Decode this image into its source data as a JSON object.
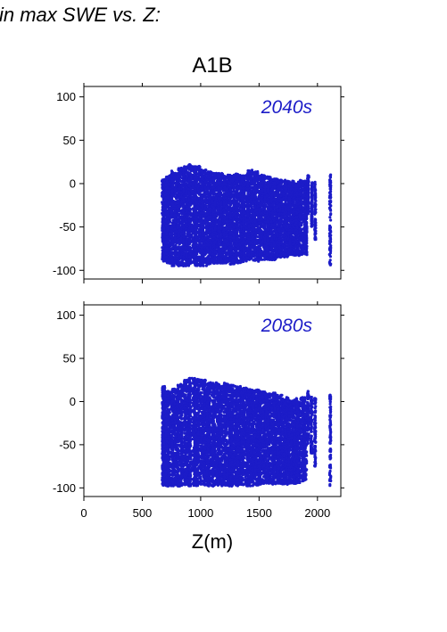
{
  "header": {
    "top_caption": "in max SWE vs. Z:",
    "scenario_title": "A1B",
    "x_axis_label": "Z(m)"
  },
  "colors": {
    "points": "#1c1cc8",
    "period_label": "#1c1cc8",
    "frame": "#000000"
  },
  "chart_data": [
    {
      "type": "scatter",
      "title": "A1B",
      "annotation": "2040s",
      "xlabel": "Z(m)",
      "ylabel": "",
      "xlim": [
        0,
        2200
      ],
      "ylim": [
        -110,
        112
      ],
      "x_ticks": [
        0,
        500,
        1000,
        1500,
        2000
      ],
      "y_ticks": [
        -100,
        -50,
        0,
        50,
        100
      ],
      "y_tick_labels": [
        "-100",
        "-50",
        "0",
        "50",
        "100"
      ],
      "grid": false,
      "point_summary": {
        "x_range": [
          670,
          2110
        ],
        "y_range_upper": [
          10,
          22
        ],
        "y_range_lower": [
          -97,
          -80
        ],
        "columns": [
          {
            "x": 670,
            "ymin": -90,
            "ymax": 5
          },
          {
            "x": 700,
            "ymin": -92,
            "ymax": 10
          },
          {
            "x": 750,
            "ymin": -95,
            "ymax": 15
          },
          {
            "x": 800,
            "ymin": -95,
            "ymax": 18
          },
          {
            "x": 850,
            "ymin": -95,
            "ymax": 20
          },
          {
            "x": 900,
            "ymin": -93,
            "ymax": 22
          },
          {
            "x": 950,
            "ymin": -95,
            "ymax": 20
          },
          {
            "x": 1000,
            "ymin": -95,
            "ymax": 16
          },
          {
            "x": 1050,
            "ymin": -93,
            "ymax": 14
          },
          {
            "x": 1100,
            "ymin": -92,
            "ymax": 12
          },
          {
            "x": 1150,
            "ymin": -92,
            "ymax": 12
          },
          {
            "x": 1200,
            "ymin": -92,
            "ymax": 10
          },
          {
            "x": 1250,
            "ymin": -93,
            "ymax": 10
          },
          {
            "x": 1300,
            "ymin": -92,
            "ymax": 12
          },
          {
            "x": 1350,
            "ymin": -90,
            "ymax": 10
          },
          {
            "x": 1400,
            "ymin": -88,
            "ymax": 16
          },
          {
            "x": 1450,
            "ymin": -90,
            "ymax": 14
          },
          {
            "x": 1500,
            "ymin": -88,
            "ymax": 10
          },
          {
            "x": 1550,
            "ymin": -88,
            "ymax": 8
          },
          {
            "x": 1600,
            "ymin": -88,
            "ymax": 6
          },
          {
            "x": 1650,
            "ymin": -85,
            "ymax": 5
          },
          {
            "x": 1700,
            "ymin": -85,
            "ymax": 4
          },
          {
            "x": 1750,
            "ymin": -82,
            "ymax": 3
          },
          {
            "x": 1800,
            "ymin": -83,
            "ymax": 2
          },
          {
            "x": 1850,
            "ymin": -82,
            "ymax": 5
          },
          {
            "x": 1920,
            "ymin": -35,
            "ymax": 10
          },
          {
            "x": 1950,
            "ymin": -50,
            "ymax": 4
          },
          {
            "x": 1980,
            "ymin": -65,
            "ymax": 2
          },
          {
            "x": 2110,
            "ymin": -95,
            "ymax": 15
          }
        ]
      }
    },
    {
      "type": "scatter",
      "title": "",
      "annotation": "2080s",
      "xlabel": "Z(m)",
      "ylabel": "",
      "xlim": [
        0,
        2200
      ],
      "ylim": [
        -110,
        112
      ],
      "x_ticks": [
        0,
        500,
        1000,
        1500,
        2000
      ],
      "x_tick_labels": [
        "0",
        "500",
        "1000",
        "1500",
        "2000"
      ],
      "y_ticks": [
        -100,
        -50,
        0,
        50,
        100
      ],
      "y_tick_labels": [
        "-100",
        "-50",
        "0",
        "50",
        "100"
      ],
      "grid": false,
      "point_summary": {
        "x_range": [
          670,
          2110
        ],
        "y_range_upper": [
          8,
          27
        ],
        "y_range_lower": [
          -100,
          -90
        ],
        "columns": [
          {
            "x": 670,
            "ymin": -97,
            "ymax": 18
          },
          {
            "x": 700,
            "ymin": -98,
            "ymax": 12
          },
          {
            "x": 750,
            "ymin": -98,
            "ymax": 15
          },
          {
            "x": 800,
            "ymin": -98,
            "ymax": 20
          },
          {
            "x": 850,
            "ymin": -98,
            "ymax": 25
          },
          {
            "x": 900,
            "ymin": -98,
            "ymax": 27
          },
          {
            "x": 950,
            "ymin": -98,
            "ymax": 27
          },
          {
            "x": 1000,
            "ymin": -98,
            "ymax": 25
          },
          {
            "x": 1050,
            "ymin": -98,
            "ymax": 22
          },
          {
            "x": 1100,
            "ymin": -98,
            "ymax": 22
          },
          {
            "x": 1150,
            "ymin": -98,
            "ymax": 20
          },
          {
            "x": 1200,
            "ymin": -98,
            "ymax": 22
          },
          {
            "x": 1250,
            "ymin": -98,
            "ymax": 20
          },
          {
            "x": 1300,
            "ymin": -98,
            "ymax": 18
          },
          {
            "x": 1350,
            "ymin": -98,
            "ymax": 16
          },
          {
            "x": 1400,
            "ymin": -98,
            "ymax": 14
          },
          {
            "x": 1450,
            "ymin": -97,
            "ymax": 14
          },
          {
            "x": 1500,
            "ymin": -96,
            "ymax": 12
          },
          {
            "x": 1550,
            "ymin": -95,
            "ymax": 10
          },
          {
            "x": 1600,
            "ymin": -96,
            "ymax": 10
          },
          {
            "x": 1650,
            "ymin": -95,
            "ymax": 8
          },
          {
            "x": 1700,
            "ymin": -96,
            "ymax": 5
          },
          {
            "x": 1750,
            "ymin": -95,
            "ymax": 3
          },
          {
            "x": 1800,
            "ymin": -95,
            "ymax": 4
          },
          {
            "x": 1850,
            "ymin": -92,
            "ymax": 5
          },
          {
            "x": 1920,
            "ymin": -50,
            "ymax": 12
          },
          {
            "x": 1950,
            "ymin": -60,
            "ymax": 6
          },
          {
            "x": 1980,
            "ymin": -75,
            "ymax": 4
          },
          {
            "x": 2110,
            "ymin": -98,
            "ymax": 8
          }
        ]
      }
    }
  ]
}
